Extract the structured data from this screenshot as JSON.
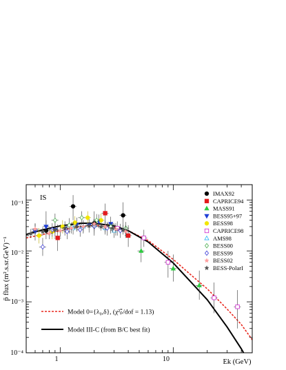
{
  "chart_data": {
    "type": "scatter",
    "panel_label": "IS",
    "xlabel": "Ek (GeV)",
    "ylabel": "p̄ flux  (m².s.sr.GeV)⁻¹",
    "xscale": "log",
    "yscale": "log",
    "xlim": [
      0.5,
      50
    ],
    "ylim": [
      0.0001,
      0.2
    ],
    "x_tick_labels": [
      "1",
      "10"
    ],
    "y_tick_labels": [
      "10⁻⁴",
      "10⁻³",
      "10⁻²",
      "10⁻¹"
    ],
    "legend_placement": "top-right",
    "series": [
      {
        "name": "IMAX92",
        "marker": "circle",
        "color": "#000000",
        "points": [
          [
            0.75,
            0.025,
            0.008,
            0.035
          ],
          [
            1.3,
            0.075,
            0.035,
            0.05
          ],
          [
            2.0,
            0.035,
            0.015,
            0.025
          ],
          [
            3.6,
            0.05,
            0.02,
            0.04
          ]
        ]
      },
      {
        "name": "CAPRICE94",
        "marker": "square",
        "color": "#e41a1c",
        "points": [
          [
            0.95,
            0.018,
            0.008,
            0.015
          ],
          [
            2.5,
            0.055,
            0.02,
            0.03
          ],
          [
            4.0,
            0.02,
            0.008,
            0.012
          ]
        ]
      },
      {
        "name": "MASS91",
        "marker": "triangle-up",
        "color": "#2ecc40",
        "points": [
          [
            5.2,
            0.01,
            0.004,
            0.008
          ],
          [
            10.0,
            0.0045,
            0.002,
            0.004
          ],
          [
            17.0,
            0.0021,
            0.001,
            0.002
          ]
        ]
      },
      {
        "name": "BESS95+97",
        "marker": "triangle-down",
        "color": "#1f3fd6",
        "points": [
          [
            0.6,
            0.024,
            0.008,
            0.01
          ],
          [
            0.75,
            0.03,
            0.008,
            0.01
          ],
          [
            0.9,
            0.026,
            0.007,
            0.01
          ],
          [
            1.1,
            0.028,
            0.008,
            0.01
          ],
          [
            1.4,
            0.033,
            0.009,
            0.012
          ],
          [
            1.8,
            0.032,
            0.009,
            0.012
          ],
          [
            2.2,
            0.038,
            0.01,
            0.014
          ],
          [
            2.8,
            0.034,
            0.01,
            0.013
          ]
        ]
      },
      {
        "name": "BESS98",
        "marker": "circle",
        "color": "#f2e600",
        "points": [
          [
            0.65,
            0.02,
            0.006,
            0.008
          ],
          [
            0.85,
            0.024,
            0.007,
            0.009
          ],
          [
            1.05,
            0.03,
            0.008,
            0.01
          ],
          [
            1.35,
            0.036,
            0.01,
            0.012
          ],
          [
            1.75,
            0.045,
            0.012,
            0.015
          ],
          [
            2.3,
            0.04,
            0.01,
            0.014
          ]
        ]
      },
      {
        "name": "CAPRICE98",
        "marker": "open-square",
        "color": "#cc22cc",
        "points": [
          [
            3.2,
            0.028,
            0.008,
            0.01
          ],
          [
            5.5,
            0.018,
            0.006,
            0.008
          ],
          [
            9.0,
            0.006,
            0.003,
            0.004
          ],
          [
            23.0,
            0.0012,
            0.0006,
            0.0012
          ],
          [
            37.0,
            0.0008,
            0.0005,
            0.0009
          ]
        ]
      },
      {
        "name": "AMS98",
        "marker": "open-triangle-up",
        "color": "#29b6f6",
        "points": [
          [
            1.3,
            0.028,
            0.007,
            0.009
          ],
          [
            1.6,
            0.03,
            0.008,
            0.01
          ],
          [
            2.0,
            0.032,
            0.008,
            0.01
          ],
          [
            2.5,
            0.028,
            0.007,
            0.009
          ],
          [
            3.0,
            0.025,
            0.007,
            0.009
          ]
        ]
      },
      {
        "name": "BESS00",
        "marker": "open-diamond",
        "color": "#4caf50",
        "points": [
          [
            0.9,
            0.04,
            0.012,
            0.014
          ],
          [
            1.2,
            0.032,
            0.01,
            0.012
          ],
          [
            1.55,
            0.045,
            0.013,
            0.015
          ],
          [
            2.1,
            0.04,
            0.01,
            0.013
          ],
          [
            2.8,
            0.03,
            0.008,
            0.01
          ],
          [
            3.8,
            0.028,
            0.008,
            0.009
          ]
        ]
      },
      {
        "name": "BESS99",
        "marker": "open-diamond",
        "color": "#3a3ad6",
        "points": [
          [
            0.7,
            0.012,
            0.004,
            0.006
          ],
          [
            0.85,
            0.026,
            0.007,
            0.009
          ],
          [
            1.15,
            0.024,
            0.007,
            0.009
          ],
          [
            1.5,
            0.026,
            0.007,
            0.009
          ],
          [
            2.0,
            0.03,
            0.008,
            0.01
          ],
          [
            2.6,
            0.028,
            0.008,
            0.009
          ],
          [
            3.4,
            0.025,
            0.007,
            0.009
          ]
        ]
      },
      {
        "name": "BESS02",
        "marker": "star",
        "color": "#ff9e9e",
        "points": [
          [
            0.6,
            0.027,
            0.006,
            0.008
          ],
          [
            0.8,
            0.022,
            0.005,
            0.007
          ],
          [
            1.0,
            0.025,
            0.006,
            0.008
          ],
          [
            1.25,
            0.028,
            0.006,
            0.008
          ],
          [
            1.6,
            0.03,
            0.007,
            0.009
          ],
          [
            2.0,
            0.034,
            0.008,
            0.01
          ],
          [
            2.5,
            0.03,
            0.007,
            0.009
          ],
          [
            3.1,
            0.027,
            0.007,
            0.008
          ],
          [
            3.8,
            0.024,
            0.006,
            0.008
          ]
        ]
      },
      {
        "name": "BESS-PolarI",
        "marker": "star",
        "color": "#555555",
        "points": [
          [
            0.55,
            0.022,
            0.004,
            0.005
          ],
          [
            0.7,
            0.024,
            0.004,
            0.005
          ],
          [
            0.9,
            0.026,
            0.004,
            0.005
          ],
          [
            1.1,
            0.028,
            0.005,
            0.006
          ],
          [
            1.4,
            0.03,
            0.005,
            0.006
          ],
          [
            1.8,
            0.031,
            0.005,
            0.006
          ],
          [
            2.3,
            0.03,
            0.005,
            0.006
          ],
          [
            2.9,
            0.028,
            0.005,
            0.006
          ],
          [
            3.6,
            0.026,
            0.005,
            0.006
          ]
        ]
      }
    ],
    "models": [
      {
        "name": "Model 0={λ₀,δ}, (χ²ₚ̄/dof = 1.13)",
        "style": "dashed",
        "color": "#e8261c",
        "x": [
          0.5,
          0.7,
          1.0,
          1.5,
          2.0,
          3.0,
          4.0,
          6.0,
          10.0,
          15.0,
          20.0,
          30.0,
          40.0,
          50.0
        ],
        "y": [
          0.018,
          0.021,
          0.025,
          0.03,
          0.032,
          0.029,
          0.025,
          0.016,
          0.0068,
          0.0031,
          0.0018,
          0.00072,
          0.00036,
          0.00018
        ]
      },
      {
        "name": "Model III-C  (from B/C best fit)",
        "style": "solid",
        "color": "#000000",
        "x": [
          0.5,
          0.7,
          1.0,
          1.5,
          2.0,
          3.0,
          4.0,
          6.0,
          10.0,
          15.0,
          20.0,
          30.0,
          40.0,
          50.0
        ],
        "y": [
          0.021,
          0.026,
          0.031,
          0.035,
          0.035,
          0.031,
          0.025,
          0.015,
          0.0058,
          0.0022,
          0.0011,
          0.00032,
          0.00012,
          5e-05
        ]
      }
    ]
  }
}
